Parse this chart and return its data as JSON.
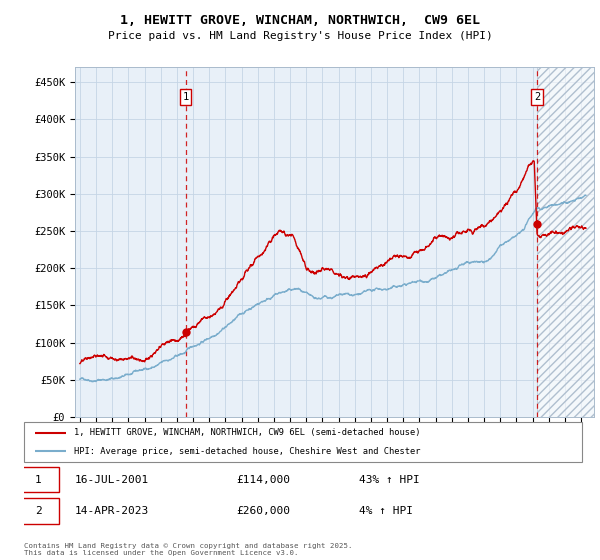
{
  "title_line1": "1, HEWITT GROVE, WINCHAM, NORTHWICH,  CW9 6EL",
  "title_line2": "Price paid vs. HM Land Registry's House Price Index (HPI)",
  "ylim": [
    0,
    470000
  ],
  "xlim_start": 1994.7,
  "xlim_end": 2026.8,
  "bg_color": "#e8f0f8",
  "hatch_region_start": 2023.28,
  "line1_color": "#cc0000",
  "line2_color": "#7aadcc",
  "transaction1_date": 2001.54,
  "transaction1_price": 114000,
  "transaction2_date": 2023.28,
  "transaction2_price": 260000,
  "legend1_label": "1, HEWITT GROVE, WINCHAM, NORTHWICH, CW9 6EL (semi-detached house)",
  "legend2_label": "HPI: Average price, semi-detached house, Cheshire West and Chester",
  "info1_date": "16-JUL-2001",
  "info1_price": "£114,000",
  "info1_hpi": "43% ↑ HPI",
  "info2_date": "14-APR-2023",
  "info2_price": "£260,000",
  "info2_hpi": "4% ↑ HPI",
  "footer": "Contains HM Land Registry data © Crown copyright and database right 2025.\nThis data is licensed under the Open Government Licence v3.0.",
  "ytick_labels": [
    "£0",
    "£50K",
    "£100K",
    "£150K",
    "£200K",
    "£250K",
    "£300K",
    "£350K",
    "£400K",
    "£450K"
  ],
  "ytick_values": [
    0,
    50000,
    100000,
    150000,
    200000,
    250000,
    300000,
    350000,
    400000,
    450000
  ]
}
